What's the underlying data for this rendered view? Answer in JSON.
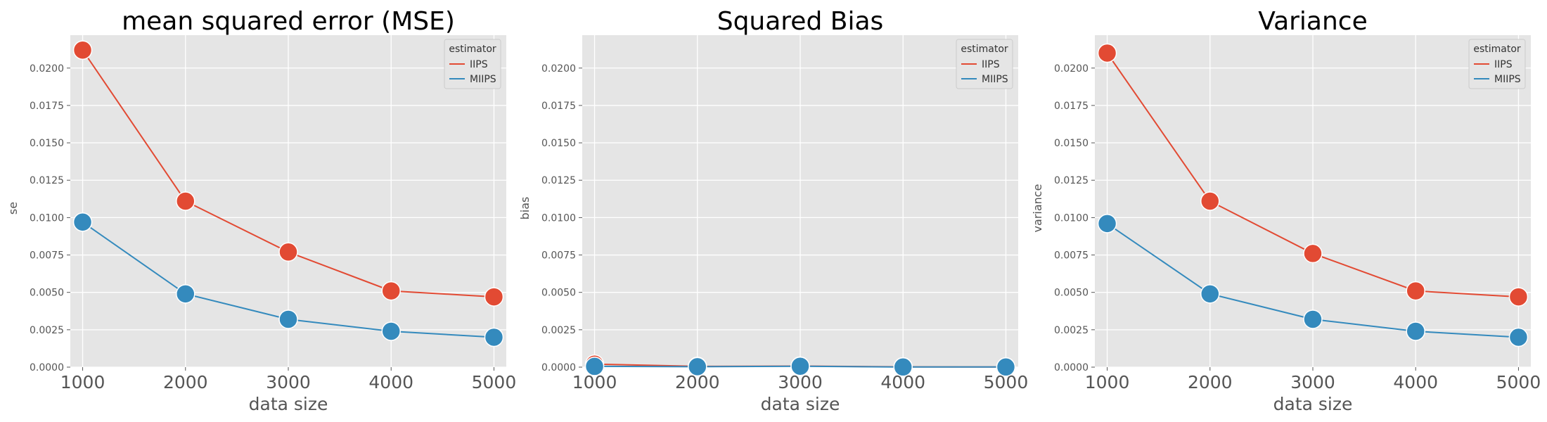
{
  "chart_data": [
    {
      "type": "line",
      "title": "mean squared error (MSE)",
      "xlabel": "data size",
      "ylabel": "se",
      "x": [
        1000,
        2000,
        3000,
        4000,
        5000
      ],
      "ylim": [
        0,
        0.0222
      ],
      "yticks": [
        "0.0000",
        "0.0025",
        "0.0050",
        "0.0075",
        "0.0100",
        "0.0125",
        "0.0150",
        "0.0175",
        "0.0200"
      ],
      "legend_title": "estimator",
      "legend_position": "top-right",
      "grid": true,
      "series": [
        {
          "name": "IIPS",
          "color": "#E24A33",
          "values": [
            0.0212,
            0.0111,
            0.0077,
            0.0051,
            0.0047
          ]
        },
        {
          "name": "MIIPS",
          "color": "#348ABD",
          "values": [
            0.0097,
            0.0049,
            0.0032,
            0.0024,
            0.002
          ]
        }
      ]
    },
    {
      "type": "line",
      "title": "Squared Bias",
      "xlabel": "data size",
      "ylabel": "bias",
      "x": [
        1000,
        2000,
        3000,
        4000,
        5000
      ],
      "ylim": [
        0,
        0.0222
      ],
      "yticks": [
        "0.0000",
        "0.0025",
        "0.0050",
        "0.0075",
        "0.0100",
        "0.0125",
        "0.0150",
        "0.0175",
        "0.0200"
      ],
      "legend_title": "estimator",
      "legend_position": "top-right",
      "grid": true,
      "series": [
        {
          "name": "IIPS",
          "color": "#E24A33",
          "values": [
            0.0002,
            5e-05,
            7e-05,
            2e-05,
            1e-05
          ]
        },
        {
          "name": "MIIPS",
          "color": "#348ABD",
          "values": [
            5e-05,
            3e-05,
            6e-05,
            1e-05,
            1e-05
          ]
        }
      ]
    },
    {
      "type": "line",
      "title": "Variance",
      "xlabel": "data size",
      "ylabel": "variance",
      "x": [
        1000,
        2000,
        3000,
        4000,
        5000
      ],
      "ylim": [
        0,
        0.0222
      ],
      "yticks": [
        "0.0000",
        "0.0025",
        "0.0050",
        "0.0075",
        "0.0100",
        "0.0125",
        "0.0150",
        "0.0175",
        "0.0200"
      ],
      "legend_title": "estimator",
      "legend_position": "top-right",
      "grid": true,
      "series": [
        {
          "name": "IIPS",
          "color": "#E24A33",
          "values": [
            0.021,
            0.0111,
            0.0076,
            0.0051,
            0.0047
          ]
        },
        {
          "name": "MIIPS",
          "color": "#348ABD",
          "values": [
            0.0096,
            0.0049,
            0.0032,
            0.0024,
            0.002
          ]
        }
      ]
    }
  ]
}
